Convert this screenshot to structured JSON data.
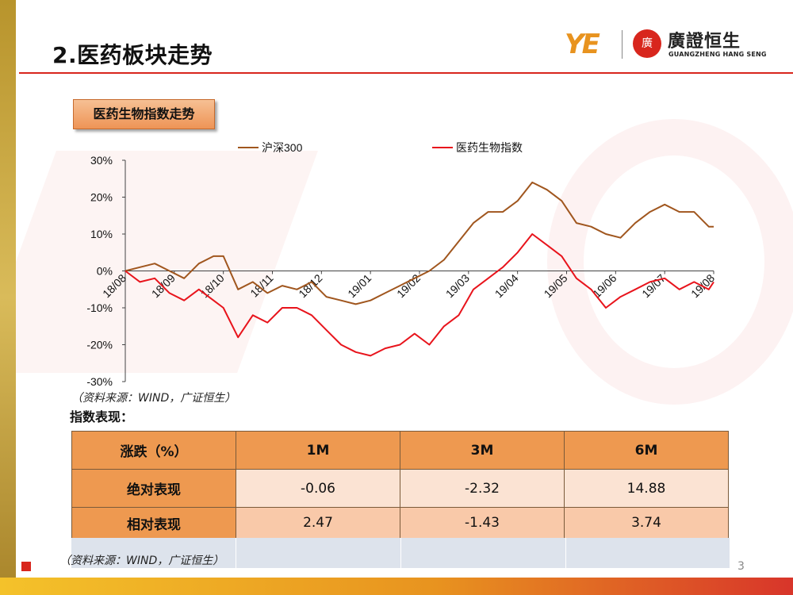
{
  "header": {
    "title": "2.医药板块走势",
    "logo_mark": "YE",
    "logo_seal": "廣",
    "logo_cn": "廣證恒生",
    "logo_en": "GUANGZHENG HANG SENG"
  },
  "badge": "医药生物指数走势",
  "colors": {
    "accent": "#d8261d",
    "hs300": "#a0561e",
    "pharma": "#e8141c"
  },
  "chart_data": {
    "type": "line",
    "title": "",
    "xlabel": "",
    "ylabel": "",
    "ylim": [
      -30,
      30
    ],
    "y_ticks": [
      "-30%",
      "-20%",
      "-10%",
      "0%",
      "10%",
      "20%",
      "30%"
    ],
    "x_ticks": [
      "18/08",
      "18/09",
      "18/10",
      "18/11",
      "18/12",
      "19/01",
      "19/02",
      "19/03",
      "19/04",
      "19/05",
      "19/06",
      "19/07",
      "19/08"
    ],
    "x": [
      0,
      0.3,
      0.6,
      0.9,
      1.2,
      1.5,
      1.8,
      2.0,
      2.3,
      2.6,
      2.9,
      3.2,
      3.5,
      3.8,
      4.1,
      4.4,
      4.7,
      5.0,
      5.3,
      5.6,
      5.9,
      6.2,
      6.5,
      6.8,
      7.1,
      7.4,
      7.7,
      8.0,
      8.3,
      8.6,
      8.9,
      9.2,
      9.5,
      9.8,
      10.1,
      10.4,
      10.7,
      11.0,
      11.3,
      11.6,
      11.9,
      12.0
    ],
    "legend_position": "top",
    "series": [
      {
        "name": "沪深300",
        "values": [
          0,
          1,
          2,
          0,
          -2,
          2,
          4,
          4,
          -5,
          -3,
          -6,
          -4,
          -5,
          -3,
          -7,
          -8,
          -9,
          -8,
          -6,
          -4,
          -2,
          0,
          3,
          8,
          13,
          16,
          16,
          19,
          24,
          22,
          19,
          13,
          12,
          10,
          9,
          13,
          16,
          18,
          16,
          16,
          12,
          12
        ]
      },
      {
        "name": "医药生物指数",
        "values": [
          0,
          -3,
          -2,
          -6,
          -8,
          -5,
          -8,
          -10,
          -18,
          -12,
          -14,
          -10,
          -10,
          -12,
          -16,
          -20,
          -22,
          -23,
          -21,
          -20,
          -17,
          -20,
          -15,
          -12,
          -5,
          -2,
          1,
          5,
          10,
          7,
          4,
          -2,
          -5,
          -10,
          -7,
          -5,
          -3,
          -2,
          -5,
          -3,
          -5,
          -3
        ]
      }
    ]
  },
  "source_note": "（资料来源：WIND，广证恒生）",
  "table_title": "指数表现：",
  "table": {
    "headers": [
      "涨跌（%）",
      "1M",
      "3M",
      "6M"
    ],
    "rows": [
      {
        "label": "绝对表现",
        "values": [
          "-0.06",
          "-2.32",
          "14.88"
        ]
      },
      {
        "label": "相对表现",
        "values": [
          "2.47",
          "-1.43",
          "3.74"
        ]
      }
    ]
  },
  "footer": {
    "source_note": "（资料来源：WIND，广证恒生）",
    "page_number": "3"
  }
}
